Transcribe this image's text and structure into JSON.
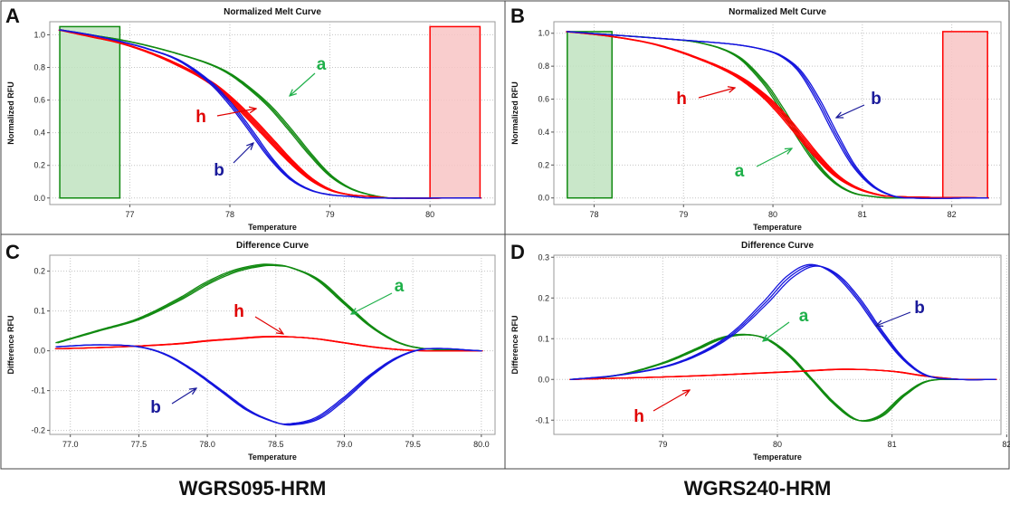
{
  "figure": {
    "captions": [
      "WGRS095-HRM",
      "WGRS240-HRM"
    ]
  },
  "colors": {
    "a": "#118a11",
    "h": "#ff0000",
    "b": "#1515dd",
    "a_label": "#1fb04a",
    "h_label": "#e00000",
    "b_label": "#1a1a9a",
    "green_region": "#bfe3bf",
    "red_region": "#f8c4c4"
  },
  "chart_data": [
    {
      "panel": "A",
      "type": "line",
      "title": "Normalized Melt Curve",
      "xlabel": "Temperature",
      "ylabel": "Normalized RFU",
      "xlim": [
        76.2,
        80.65
      ],
      "ylim": [
        -0.04,
        1.08
      ],
      "xticks": [
        77,
        78,
        79,
        80
      ],
      "xtick_labels": [
        "77",
        "78",
        "79",
        "80"
      ],
      "yticks": [
        0.0,
        0.2,
        0.4,
        0.6,
        0.8,
        1.0
      ],
      "ytick_labels": [
        "0.0",
        "0.2",
        "0.4",
        "0.6",
        "0.8",
        "1.0"
      ],
      "grid": true,
      "regions": [
        {
          "color": "green",
          "x": [
            76.3,
            76.9
          ],
          "y": [
            0,
            1.05
          ]
        },
        {
          "color": "red",
          "x": [
            80.0,
            80.5
          ],
          "y": [
            0,
            1.05
          ]
        }
      ],
      "series": [
        {
          "name": "a",
          "x": [
            76.3,
            76.6,
            76.9,
            77.2,
            77.5,
            77.8,
            78.0,
            78.2,
            78.4,
            78.6,
            78.8,
            79.0,
            79.2,
            79.4,
            79.6,
            79.8,
            80.5
          ],
          "y": [
            1.03,
            1.0,
            0.97,
            0.93,
            0.88,
            0.82,
            0.76,
            0.67,
            0.56,
            0.42,
            0.27,
            0.14,
            0.06,
            0.02,
            0.0,
            0.0,
            0.0
          ]
        },
        {
          "name": "h",
          "x": [
            76.3,
            76.6,
            76.9,
            77.2,
            77.5,
            77.8,
            78.0,
            78.2,
            78.4,
            78.6,
            78.8,
            79.0,
            79.2,
            79.4,
            79.6,
            80.5
          ],
          "y": [
            1.03,
            0.99,
            0.95,
            0.89,
            0.81,
            0.71,
            0.61,
            0.49,
            0.36,
            0.23,
            0.12,
            0.05,
            0.02,
            0.01,
            0.0,
            0.0
          ]
        },
        {
          "name": "b",
          "x": [
            76.3,
            76.6,
            76.9,
            77.2,
            77.5,
            77.8,
            78.0,
            78.2,
            78.4,
            78.6,
            78.8,
            79.0,
            79.2,
            79.4,
            80.5
          ],
          "y": [
            1.03,
            1.0,
            0.96,
            0.91,
            0.84,
            0.71,
            0.58,
            0.42,
            0.25,
            0.12,
            0.05,
            0.02,
            0.01,
            0.0,
            0.0
          ]
        }
      ],
      "annotations": [
        {
          "text": "a",
          "series": "a"
        },
        {
          "text": "h",
          "series": "h"
        },
        {
          "text": "b",
          "series": "b"
        }
      ]
    },
    {
      "panel": "B",
      "type": "line",
      "title": "Normalized Melt Curve",
      "xlabel": "Temperature",
      "ylabel": "Normalized RFU",
      "xlim": [
        77.55,
        82.55
      ],
      "ylim": [
        -0.04,
        1.07
      ],
      "xticks": [
        78,
        79,
        80,
        81,
        82
      ],
      "xtick_labels": [
        "78",
        "79",
        "80",
        "81",
        "82"
      ],
      "yticks": [
        0.0,
        0.2,
        0.4,
        0.6,
        0.8,
        1.0
      ],
      "ytick_labels": [
        "0.0",
        "0.2",
        "0.4",
        "0.6",
        "0.8",
        "1.0"
      ],
      "grid": true,
      "regions": [
        {
          "color": "green",
          "x": [
            77.7,
            78.2
          ],
          "y": [
            0,
            1.01
          ]
        },
        {
          "color": "red",
          "x": [
            81.9,
            82.4
          ],
          "y": [
            0,
            1.01
          ]
        }
      ],
      "series": [
        {
          "name": "a",
          "x": [
            77.7,
            78.2,
            78.7,
            79.2,
            79.6,
            79.9,
            80.1,
            80.3,
            80.5,
            80.7,
            80.9,
            81.1,
            81.3,
            82.4
          ],
          "y": [
            1.01,
            0.99,
            0.97,
            0.94,
            0.86,
            0.7,
            0.54,
            0.36,
            0.2,
            0.09,
            0.03,
            0.01,
            0.0,
            0.0
          ]
        },
        {
          "name": "h",
          "x": [
            77.7,
            78.2,
            78.7,
            79.2,
            79.6,
            79.9,
            80.1,
            80.3,
            80.5,
            80.7,
            80.9,
            81.1,
            81.3,
            82.4
          ],
          "y": [
            1.01,
            0.98,
            0.93,
            0.84,
            0.74,
            0.62,
            0.51,
            0.38,
            0.25,
            0.14,
            0.07,
            0.03,
            0.01,
            0.0
          ]
        },
        {
          "name": "b",
          "x": [
            77.7,
            78.2,
            78.7,
            79.2,
            79.6,
            79.9,
            80.1,
            80.3,
            80.5,
            80.7,
            80.9,
            81.1,
            81.3,
            81.5,
            82.4
          ],
          "y": [
            1.01,
            0.99,
            0.97,
            0.95,
            0.93,
            0.9,
            0.86,
            0.77,
            0.6,
            0.39,
            0.2,
            0.08,
            0.02,
            0.0,
            0.0
          ]
        }
      ],
      "annotations": [
        {
          "text": "h",
          "series": "h"
        },
        {
          "text": "b",
          "series": "b"
        },
        {
          "text": "a",
          "series": "a"
        }
      ]
    },
    {
      "panel": "C",
      "type": "line",
      "title": "Difference Curve",
      "xlabel": "Temperature",
      "ylabel": "Difference RFU",
      "xlim": [
        76.85,
        80.1
      ],
      "ylim": [
        -0.21,
        0.24
      ],
      "xticks": [
        77.0,
        77.5,
        78.0,
        78.5,
        79.0,
        79.5,
        80.0
      ],
      "xtick_labels": [
        "77.0",
        "77.5",
        "78.0",
        "78.5",
        "79.0",
        "79.5",
        "80.0"
      ],
      "yticks": [
        -0.2,
        -0.1,
        0.0,
        0.1,
        0.2
      ],
      "ytick_labels": [
        "-0.2",
        "-0.1",
        "0.0",
        "0.1",
        "0.2"
      ],
      "grid": true,
      "series": [
        {
          "name": "a",
          "x": [
            76.9,
            77.2,
            77.5,
            77.8,
            78.0,
            78.2,
            78.4,
            78.5,
            78.6,
            78.8,
            79.0,
            79.2,
            79.4,
            79.6,
            80.0
          ],
          "y": [
            0.02,
            0.05,
            0.08,
            0.13,
            0.17,
            0.2,
            0.215,
            0.215,
            0.21,
            0.18,
            0.12,
            0.06,
            0.02,
            0.005,
            0.0
          ]
        },
        {
          "name": "h",
          "x": [
            76.9,
            77.2,
            77.5,
            77.8,
            78.0,
            78.2,
            78.4,
            78.6,
            78.8,
            79.0,
            79.2,
            79.4,
            79.6,
            80.0
          ],
          "y": [
            0.005,
            0.008,
            0.012,
            0.018,
            0.025,
            0.03,
            0.035,
            0.035,
            0.03,
            0.02,
            0.01,
            0.003,
            0.0,
            0.0
          ]
        },
        {
          "name": "b",
          "x": [
            76.9,
            77.2,
            77.5,
            77.7,
            77.9,
            78.1,
            78.3,
            78.5,
            78.6,
            78.8,
            79.0,
            79.2,
            79.4,
            79.6,
            80.0
          ],
          "y": [
            0.01,
            0.015,
            0.01,
            -0.01,
            -0.05,
            -0.1,
            -0.15,
            -0.18,
            -0.185,
            -0.17,
            -0.12,
            -0.06,
            -0.015,
            0.005,
            0.0
          ]
        }
      ],
      "annotations": [
        {
          "text": "a",
          "series": "a"
        },
        {
          "text": "h",
          "series": "h"
        },
        {
          "text": "b",
          "series": "b"
        }
      ]
    },
    {
      "panel": "D",
      "type": "line",
      "title": "Difference Curve",
      "xlabel": "Temperature",
      "ylabel": "Difference RFU",
      "xlim": [
        78.05,
        81.95
      ],
      "ylim": [
        -0.135,
        0.305
      ],
      "xticks": [
        79,
        80,
        81,
        82
      ],
      "xtick_labels": [
        "79",
        "80",
        "81",
        "82"
      ],
      "yticks": [
        -0.1,
        0.0,
        0.1,
        0.2,
        0.3
      ],
      "ytick_labels": [
        "-0.1",
        "0.0",
        "0.1",
        "0.2",
        "0.3"
      ],
      "grid": true,
      "series": [
        {
          "name": "a",
          "x": [
            78.2,
            78.6,
            79.0,
            79.3,
            79.5,
            79.7,
            79.9,
            80.1,
            80.3,
            80.5,
            80.7,
            80.9,
            81.1,
            81.3,
            81.6,
            81.9
          ],
          "y": [
            0.0,
            0.01,
            0.04,
            0.075,
            0.1,
            0.11,
            0.1,
            0.06,
            0.0,
            -0.06,
            -0.1,
            -0.09,
            -0.04,
            -0.005,
            0.0,
            0.0
          ]
        },
        {
          "name": "h",
          "x": [
            78.2,
            78.6,
            79.0,
            79.4,
            79.8,
            80.2,
            80.6,
            81.0,
            81.3,
            81.6,
            81.9
          ],
          "y": [
            0.0,
            0.003,
            0.006,
            0.01,
            0.015,
            0.02,
            0.025,
            0.02,
            0.008,
            0.0,
            0.0
          ]
        },
        {
          "name": "b",
          "x": [
            78.2,
            78.6,
            79.0,
            79.3,
            79.6,
            79.9,
            80.1,
            80.3,
            80.5,
            80.7,
            80.9,
            81.1,
            81.3,
            81.6,
            81.9
          ],
          "y": [
            0.0,
            0.01,
            0.03,
            0.06,
            0.11,
            0.19,
            0.25,
            0.28,
            0.26,
            0.2,
            0.12,
            0.05,
            0.01,
            0.0,
            0.0
          ]
        }
      ],
      "annotations": [
        {
          "text": "b",
          "series": "b"
        },
        {
          "text": "a",
          "series": "a"
        },
        {
          "text": "h",
          "series": "h"
        }
      ]
    }
  ]
}
